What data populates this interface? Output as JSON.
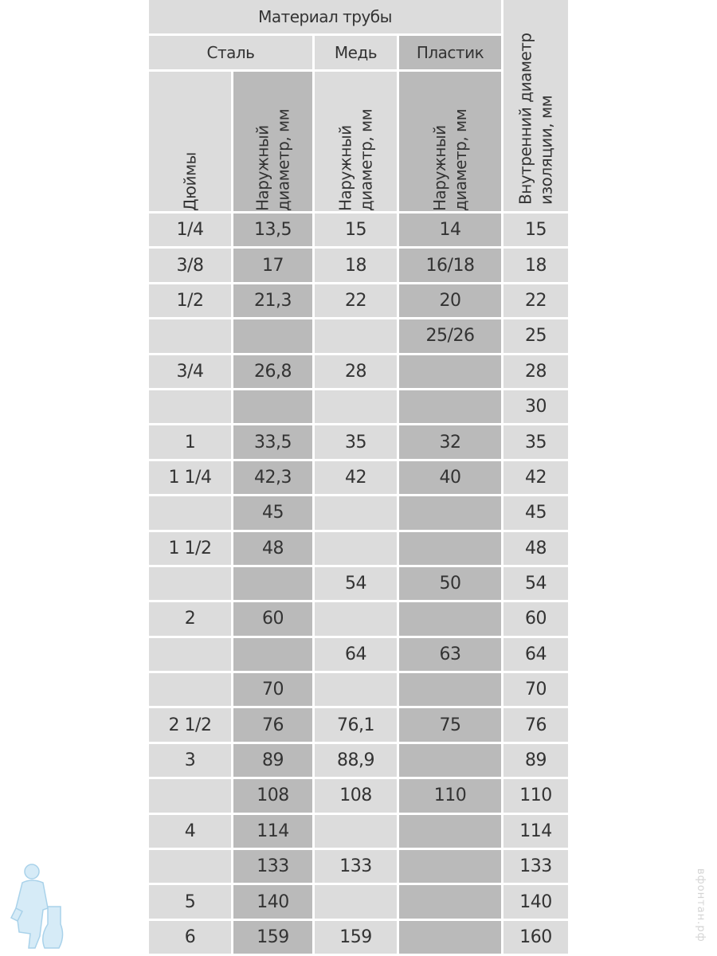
{
  "header": {
    "material": "Материал трубы",
    "steel": "Сталь",
    "copper": "Медь",
    "plastic": "Пластик",
    "inches": "Дюймы",
    "steel_od": "Наружный диаметр, мм",
    "copper_od": "Наружный диаметр, мм",
    "plastic_od": "Наружный диаметр, мм",
    "insulation_id": "Внутренний диаметр изоляции, мм"
  },
  "rows": [
    [
      "1/4",
      "13,5",
      "15",
      "14",
      "15"
    ],
    [
      "3/8",
      "17",
      "18",
      "16/18",
      "18"
    ],
    [
      "1/2",
      "21,3",
      "22",
      "20",
      "22"
    ],
    [
      "",
      "",
      "",
      "25/26",
      "25"
    ],
    [
      "3/4",
      "26,8",
      "28",
      "",
      "28"
    ],
    [
      "",
      "",
      "",
      "",
      "30"
    ],
    [
      "1",
      "33,5",
      "35",
      "32",
      "35"
    ],
    [
      "1 1/4",
      "42,3",
      "42",
      "40",
      "42"
    ],
    [
      "",
      "45",
      "",
      "",
      "45"
    ],
    [
      "1 1/2",
      "48",
      "",
      "",
      "48"
    ],
    [
      "",
      "",
      "54",
      "50",
      "54"
    ],
    [
      "2",
      "60",
      "",
      "",
      "60"
    ],
    [
      "",
      "",
      "64",
      "63",
      "64"
    ],
    [
      "",
      "70",
      "",
      "",
      "70"
    ],
    [
      "2 1/2",
      "76",
      "76,1",
      "75",
      "76"
    ],
    [
      "3",
      "89",
      "88,9",
      "",
      "89"
    ],
    [
      "",
      "108",
      "108",
      "110",
      "110"
    ],
    [
      "4",
      "114",
      "",
      "",
      "114"
    ],
    [
      "",
      "133",
      "133",
      "",
      "133"
    ],
    [
      "5",
      "140",
      "",
      "",
      "140"
    ],
    [
      "6",
      "159",
      "159",
      "",
      "160"
    ]
  ],
  "colors": {
    "light_cell": "#dcdcdc",
    "dark_cell": "#bababa",
    "logo": "#bfe0f2"
  },
  "watermark": "вфонтан.рф"
}
